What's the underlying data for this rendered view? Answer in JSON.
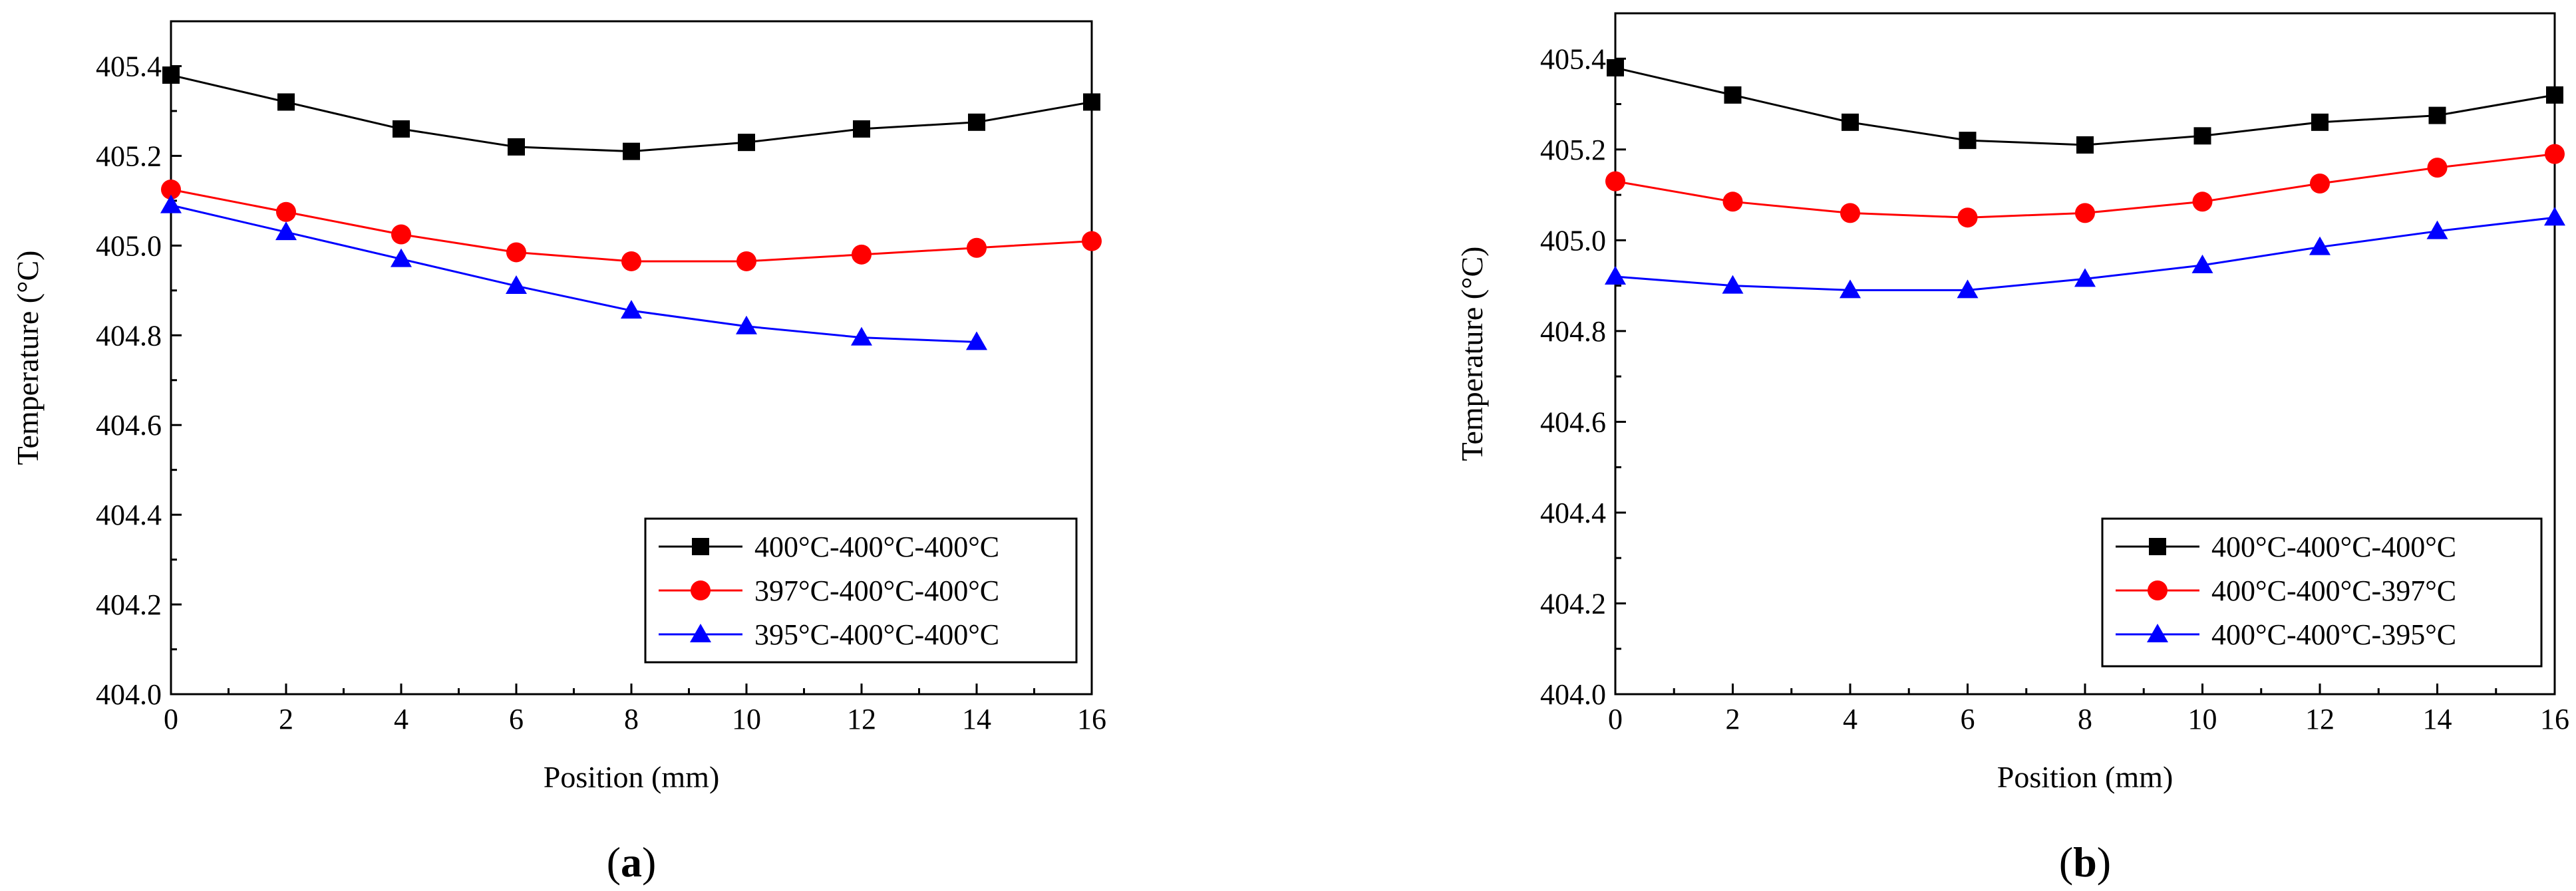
{
  "chart_data": [
    {
      "type": "line",
      "panel_label": "a",
      "xlabel": "Position (mm)",
      "ylabel": "Temperature (°C)",
      "xlim": [
        0,
        16
      ],
      "ylim": [
        404.0,
        405.5
      ],
      "xticks": [
        0,
        2,
        4,
        6,
        8,
        10,
        12,
        14,
        16
      ],
      "yticks": [
        404.0,
        404.2,
        404.4,
        404.6,
        404.8,
        405.0,
        405.2,
        405.4
      ],
      "xtick_labels": [
        "0",
        "2",
        "4",
        "6",
        "8",
        "10",
        "12",
        "14",
        "16"
      ],
      "ytick_labels": [
        "404.0",
        "404.2",
        "404.4",
        "404.6",
        "404.8",
        "405.0",
        "405.2",
        "405.4"
      ],
      "legend_position": "bottom-right",
      "series": [
        {
          "name": "400°C-400°C-400°C",
          "color": "#000000",
          "marker": "square",
          "x": [
            0,
            2,
            4,
            6,
            8,
            10,
            12,
            14,
            16
          ],
          "values": [
            405.38,
            405.32,
            405.26,
            405.22,
            405.21,
            405.23,
            405.26,
            405.275,
            405.32
          ]
        },
        {
          "name": "397°C-400°C-400°C",
          "color": "#ff0000",
          "marker": "circle",
          "x": [
            0,
            2,
            4,
            6,
            8,
            10,
            12,
            14,
            16
          ],
          "values": [
            405.125,
            405.075,
            405.025,
            404.985,
            404.965,
            404.965,
            404.98,
            404.995,
            405.01
          ]
        },
        {
          "name": "395°C-400°C-400°C",
          "color": "#0000ff",
          "marker": "triangle",
          "x": [
            0,
            2,
            4,
            6,
            8,
            10,
            12,
            14
          ],
          "values": [
            405.09,
            405.03,
            404.97,
            404.91,
            404.855,
            404.82,
            404.795,
            404.785
          ]
        }
      ]
    },
    {
      "type": "line",
      "panel_label": "b",
      "xlabel": "Position (mm)",
      "ylabel": "Temperature (°C)",
      "xlim": [
        0,
        16
      ],
      "ylim": [
        404.0,
        405.5
      ],
      "xticks": [
        0,
        2,
        4,
        6,
        8,
        10,
        12,
        14,
        16
      ],
      "yticks": [
        404.0,
        404.2,
        404.4,
        404.6,
        404.8,
        405.0,
        405.2,
        405.4
      ],
      "xtick_labels": [
        "0",
        "2",
        "4",
        "6",
        "8",
        "10",
        "12",
        "14",
        "16"
      ],
      "ytick_labels": [
        "404.0",
        "404.2",
        "404.4",
        "404.6",
        "404.8",
        "405.0",
        "405.2",
        "405.4"
      ],
      "legend_position": "bottom-right",
      "series": [
        {
          "name": "400°C-400°C-400°C",
          "color": "#000000",
          "marker": "square",
          "x": [
            0,
            2,
            4,
            6,
            8,
            10,
            12,
            14,
            16
          ],
          "values": [
            405.38,
            405.32,
            405.26,
            405.22,
            405.21,
            405.23,
            405.26,
            405.275,
            405.32
          ]
        },
        {
          "name": "400°C-400°C-397°C",
          "color": "#ff0000",
          "marker": "circle",
          "x": [
            0,
            2,
            4,
            6,
            8,
            10,
            12,
            14,
            16
          ],
          "values": [
            405.13,
            405.085,
            405.06,
            405.05,
            405.06,
            405.085,
            405.125,
            405.16,
            405.19
          ]
        },
        {
          "name": "400°C-400°C-395°C",
          "color": "#0000ff",
          "marker": "triangle",
          "x": [
            0,
            2,
            4,
            6,
            8,
            10,
            12,
            14,
            16
          ],
          "values": [
            404.92,
            404.9,
            404.89,
            404.89,
            404.915,
            404.945,
            404.985,
            405.02,
            405.05
          ]
        }
      ]
    }
  ]
}
